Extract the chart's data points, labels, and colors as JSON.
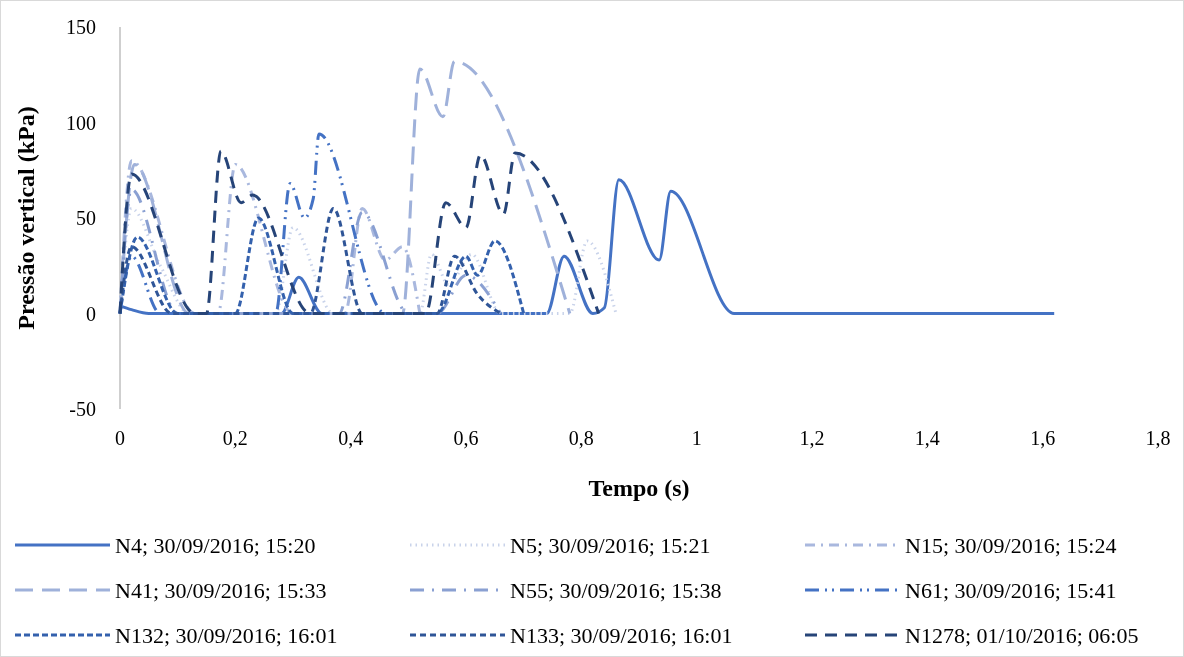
{
  "chart_data": {
    "type": "line",
    "xlabel": "Tempo (s)",
    "ylabel": "Pressão vertical (kPa)",
    "xlim": [
      0,
      1.8
    ],
    "xticks": [
      {
        "value": 0,
        "label": "0"
      },
      {
        "value": 0.2,
        "label": "0,2"
      },
      {
        "value": 0.4,
        "label": "0,4"
      },
      {
        "value": 0.6,
        "label": "0,6"
      },
      {
        "value": 0.8,
        "label": "0,8"
      },
      {
        "value": 1,
        "label": "1"
      },
      {
        "value": 1.2,
        "label": "1,2"
      },
      {
        "value": 1.4,
        "label": "1,4"
      },
      {
        "value": 1.6,
        "label": "1,6"
      },
      {
        "value": 1.8,
        "label": "1,8"
      }
    ],
    "ylim": [
      -50,
      150
    ],
    "yticks": [
      -50,
      0,
      50,
      100,
      150
    ],
    "grid": false,
    "legend": "bottom",
    "marker": "none",
    "series": [
      {
        "name": "N4; 30/09/2016; 15:20",
        "color": "#4472c4",
        "line_style": "solid",
        "x": [
          0,
          0.02,
          0.05,
          0.1,
          0.28,
          0.31,
          0.35,
          0.74,
          0.77,
          0.82,
          0.84,
          0.865,
          0.935,
          0.955,
          1.065,
          1.62
        ],
        "values": [
          4,
          2,
          0,
          0,
          0,
          19,
          0,
          0,
          30,
          0,
          3,
          70,
          28,
          64,
          0,
          0
        ]
      },
      {
        "name": "N5; 30/09/2016; 15:21",
        "color": "#c9d3ea",
        "line_style": "dotted",
        "x": [
          0,
          0.02,
          0.07,
          0.12,
          0.27,
          0.3,
          0.37,
          0.52,
          0.54,
          0.57,
          0.61,
          0.66,
          0.78,
          0.81,
          0.86
        ],
        "values": [
          0,
          55,
          25,
          0,
          0,
          45,
          0,
          0,
          31,
          15,
          31,
          0,
          0,
          38,
          0
        ]
      },
      {
        "name": "N15; 30/09/2016; 15:24",
        "color": "#a9b8de",
        "line_style": "dashed",
        "x": [
          0,
          0.02,
          0.13,
          0.17,
          0.2,
          0.3,
          0.39,
          0.42,
          0.46,
          0.49,
          0.52
        ],
        "values": [
          0,
          80,
          0,
          0,
          78,
          0,
          0,
          55,
          28,
          35,
          0
        ]
      },
      {
        "name": "N41; 30/09/2016; 15:33",
        "color": "#9fb1da",
        "line_style": "dashed",
        "x": [
          0,
          0.025,
          0.12,
          0.49,
          0.52,
          0.56,
          0.58,
          0.78
        ],
        "values": [
          0,
          78,
          0,
          0,
          128,
          103,
          132,
          0
        ]
      },
      {
        "name": "N55; 30/09/2016; 15:38",
        "color": "#8aa0d2",
        "line_style": "dashed",
        "x": [
          0,
          0.02,
          0.1,
          0.38,
          0.42,
          0.5,
          0.55,
          0.6,
          0.66
        ],
        "values": [
          0,
          65,
          0,
          0,
          53,
          0,
          0,
          20,
          0
        ]
      },
      {
        "name": "N61; 30/09/2016; 15:41",
        "color": "#4472c4",
        "line_style": "dashed",
        "x": [
          0,
          0.02,
          0.07,
          0.27,
          0.295,
          0.32,
          0.335,
          0.345,
          0.46,
          0.52
        ],
        "values": [
          0,
          30,
          0,
          0,
          68,
          50,
          60,
          94,
          0,
          0
        ]
      },
      {
        "name": "N132; 30/09/2016; 16:01",
        "color": "#3461ad",
        "line_style": "dashed",
        "x": [
          0,
          0.03,
          0.1,
          0.2,
          0.24,
          0.3,
          0.33,
          0.55,
          0.6,
          0.62,
          0.65,
          0.7
        ],
        "values": [
          0,
          40,
          0,
          0,
          50,
          0,
          0,
          0,
          30,
          20,
          38,
          0
        ]
      },
      {
        "name": "N133; 30/09/2016; 16:01",
        "color": "#2f5597",
        "line_style": "dashed",
        "x": [
          0,
          0.02,
          0.09,
          0.33,
          0.37,
          0.42,
          0.55,
          0.58,
          0.62,
          0.66
        ],
        "values": [
          0,
          35,
          0,
          0,
          55,
          0,
          0,
          30,
          10,
          0
        ]
      },
      {
        "name": "N1278; 01/10/2016; 06:05",
        "color": "#264478",
        "line_style": "dashed",
        "x": [
          0,
          0.02,
          0.13,
          0.15,
          0.175,
          0.21,
          0.23,
          0.33,
          0.53,
          0.565,
          0.6,
          0.625,
          0.665,
          0.685,
          0.83
        ],
        "values": [
          0,
          73,
          0,
          0,
          85,
          58,
          62,
          0,
          0,
          58,
          45,
          83,
          52,
          84,
          0
        ]
      }
    ]
  }
}
